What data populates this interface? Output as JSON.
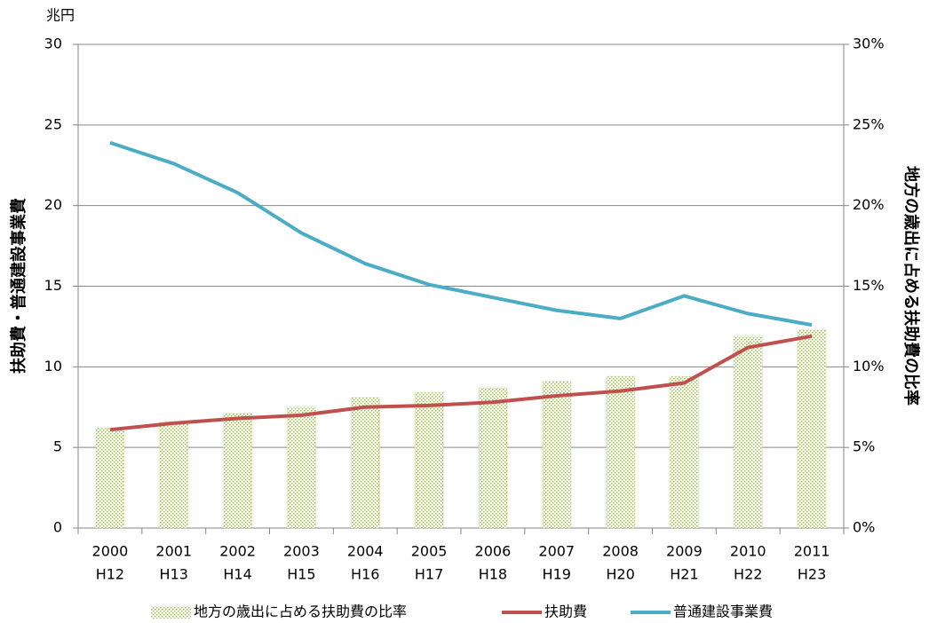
{
  "chart_data": {
    "type": "bar",
    "unit_label": "兆円",
    "ylabel": "扶助費・普通建設事業費",
    "y2label": "地方の歳出に占める扶助費の比率",
    "categories": [
      [
        "2000",
        "H12"
      ],
      [
        "2001",
        "H13"
      ],
      [
        "2002",
        "H14"
      ],
      [
        "2003",
        "H15"
      ],
      [
        "2004",
        "H16"
      ],
      [
        "2005",
        "H17"
      ],
      [
        "2006",
        "H18"
      ],
      [
        "2007",
        "H19"
      ],
      [
        "2008",
        "H20"
      ],
      [
        "2009",
        "H21"
      ],
      [
        "2010",
        "H22"
      ],
      [
        "2011",
        "H23"
      ]
    ],
    "series": [
      {
        "name": "地方の歳出に占める扶助費の比率",
        "type": "bar",
        "axis": "y2",
        "color": "#9bbb59",
        "values": [
          6.2,
          6.6,
          7.1,
          7.5,
          8.1,
          8.4,
          8.7,
          9.1,
          9.4,
          9.4,
          11.9,
          12.3
        ]
      },
      {
        "name": "扶助費",
        "type": "line",
        "color": "#c0504d",
        "values": [
          6.1,
          6.5,
          6.8,
          7.0,
          7.5,
          7.6,
          7.8,
          8.2,
          8.5,
          9.0,
          11.2,
          11.9
        ]
      },
      {
        "name": "普通建設事業費",
        "type": "line",
        "color": "#4bacc6",
        "values": [
          23.9,
          22.6,
          20.8,
          18.3,
          16.4,
          15.1,
          14.3,
          13.5,
          13.0,
          14.4,
          13.3,
          12.6
        ]
      }
    ],
    "ylim": [
      0,
      30
    ],
    "yticks": [
      0,
      5,
      10,
      15,
      20,
      25,
      30
    ],
    "y2lim": [
      0,
      30
    ],
    "y2ticks": [
      {
        "value": 0,
        "label": "0%"
      },
      {
        "value": 5,
        "label": "5%"
      },
      {
        "value": 10,
        "label": "10%"
      },
      {
        "value": 15,
        "label": "15%"
      },
      {
        "value": 20,
        "label": "20%"
      },
      {
        "value": 25,
        "label": "25%"
      },
      {
        "value": 30,
        "label": "30%"
      }
    ],
    "grid": true,
    "legend": "bottom"
  }
}
